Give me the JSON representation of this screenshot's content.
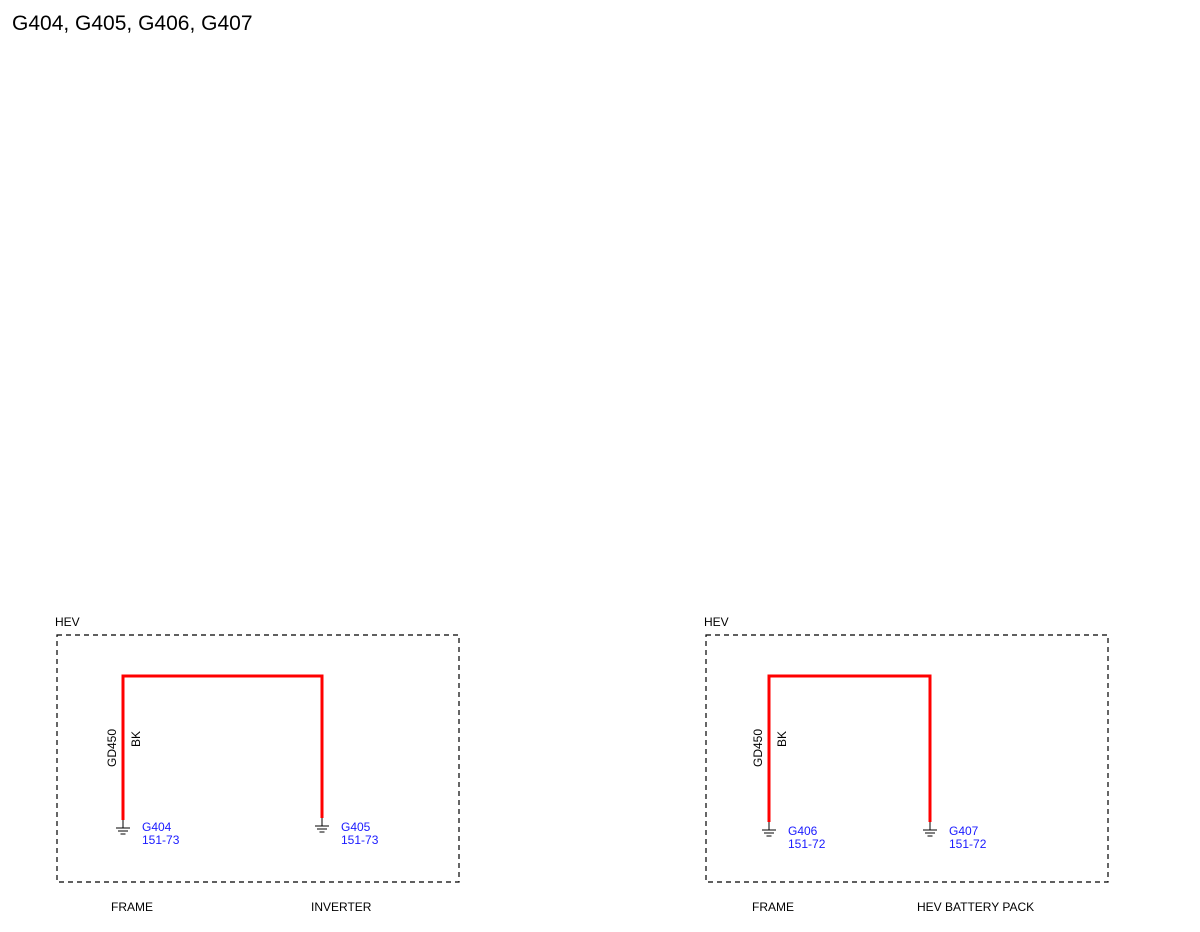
{
  "title": "G404, G405, G406, G407",
  "panels": [
    {
      "label": "HEV",
      "circuit": "GD450",
      "wire_color": "BK",
      "grounds": [
        {
          "id": "G404",
          "ref": "151-73",
          "location": "FRAME"
        },
        {
          "id": "G405",
          "ref": "151-73",
          "location": "INVERTER"
        }
      ]
    },
    {
      "label": "HEV",
      "circuit": "GD450",
      "wire_color": "BK",
      "grounds": [
        {
          "id": "G406",
          "ref": "151-72",
          "location": "FRAME"
        },
        {
          "id": "G407",
          "ref": "151-72",
          "location": "HEV BATTERY PACK"
        }
      ]
    }
  ]
}
